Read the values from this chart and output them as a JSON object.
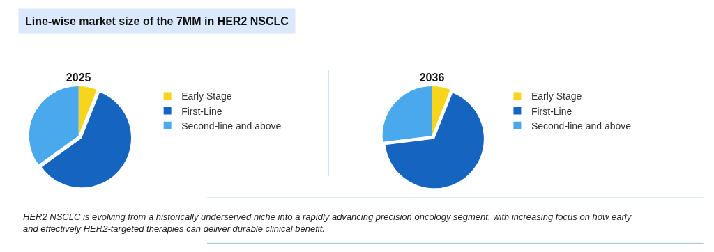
{
  "chart_data": [
    {
      "type": "pie",
      "title": "2025",
      "categories": [
        "Early Stage",
        "First-Line",
        "Second-line and above"
      ],
      "values": [
        6,
        59,
        35
      ],
      "colors": [
        "#f7d51d",
        "#1565c0",
        "#4aa8ec"
      ],
      "legend": "right",
      "annotations": [
        "Line-wise market size of the 7MM in HER2 NSCLC",
        "HER2 NSCLC is evolving from a historically underserved niche into a rapidly advancing precision oncology segment, with increasing focus on how early and effectively HER2-targeted therapies can deliver durable clinical benefit."
      ]
    },
    {
      "type": "pie",
      "title": "2036",
      "categories": [
        "Early Stage",
        "First-Line",
        "Second-line and above"
      ],
      "values": [
        6,
        67,
        27
      ],
      "colors": [
        "#f7d51d",
        "#1565c0",
        "#4aa8ec"
      ],
      "legend": "right"
    }
  ]
}
